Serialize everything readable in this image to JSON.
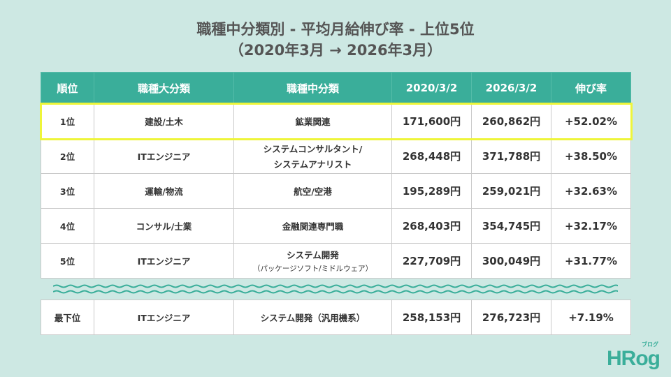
{
  "title": {
    "line1": "職種中分類別 - 平均月給伸び率 - 上位5位",
    "line2": "（2020年3月 → 2026年3月）"
  },
  "table": {
    "headers": [
      "順位",
      "職種大分類",
      "職種中分類",
      "2020/3/2",
      "2026/3/2",
      "伸び率"
    ],
    "rows": [
      {
        "rank": "1位",
        "major": "建設/土木",
        "sub": "鉱業関連",
        "sub2": "",
        "v2020": "171,600円",
        "v2026": "260,862円",
        "growth": "+52.02%"
      },
      {
        "rank": "2位",
        "major": "ITエンジニア",
        "sub": "システムコンサルタント/",
        "sub2": "システムアナリスト",
        "v2020": "268,448円",
        "v2026": "371,788円",
        "growth": "+38.50%"
      },
      {
        "rank": "3位",
        "major": "運輸/物流",
        "sub": "航空/空港",
        "sub2": "",
        "v2020": "195,289円",
        "v2026": "259,021円",
        "growth": "+32.63%"
      },
      {
        "rank": "4位",
        "major": "コンサル/士業",
        "sub": "金融関連専門職",
        "sub2": "",
        "v2020": "268,403円",
        "v2026": "354,745円",
        "growth": "+32.17%"
      },
      {
        "rank": "5位",
        "major": "ITエンジニア",
        "sub": "システム開発",
        "sub2": "（パッケージソフト/ミドルウェア）",
        "v2020": "227,709円",
        "v2026": "300,049円",
        "growth": "+31.77%"
      }
    ],
    "bottom_row": {
      "rank": "最下位",
      "major": "ITエンジニア",
      "sub": "システム開発（汎用機系）",
      "v2020": "258,153円",
      "v2026": "276,723円",
      "growth": "+7.19%"
    }
  },
  "logo": {
    "text": "HRog",
    "subtext": "ブログ"
  },
  "colors": {
    "background": "#cde8e3",
    "header": "#3aae9a",
    "highlight": "#eef53a"
  }
}
